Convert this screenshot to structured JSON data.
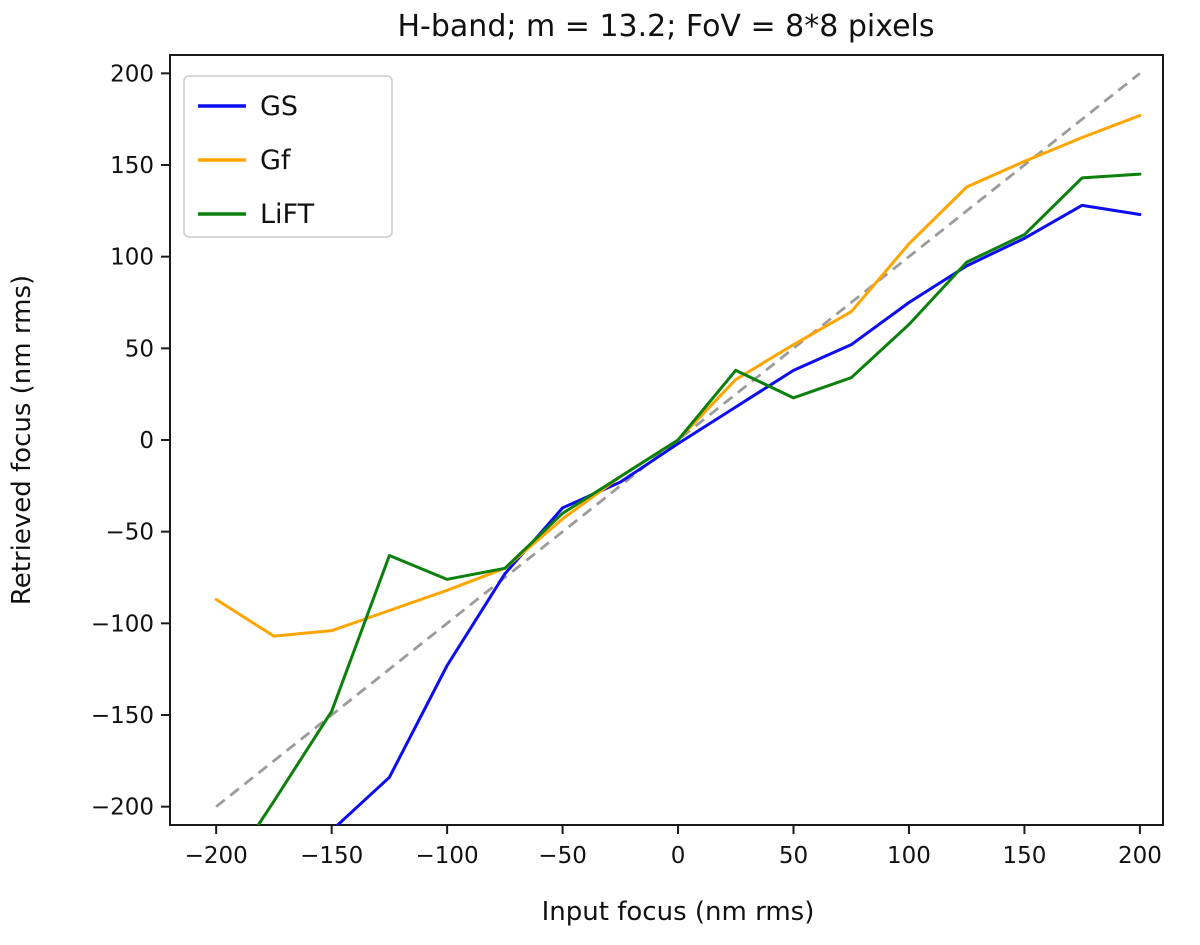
{
  "chart": {
    "title": "H-band; m = 13.2; FoV = 8*8 pixels",
    "xlabel": "Input focus (nm rms)",
    "ylabel": "Retrieved focus (nm rms)"
  },
  "chart_data": {
    "type": "line",
    "title": "H-band; m = 13.2; FoV = 8*8 pixels",
    "xlabel": "Input focus (nm rms)",
    "ylabel": "Retrieved focus (nm rms)",
    "xlim": [
      -220,
      210
    ],
    "ylim": [
      -210,
      210
    ],
    "xticks": [
      -200,
      -150,
      -100,
      -50,
      0,
      50,
      100,
      150,
      200
    ],
    "yticks": [
      -200,
      -150,
      -100,
      -50,
      0,
      50,
      100,
      150,
      200
    ],
    "grid": false,
    "legend_position": "upper left",
    "series": [
      {
        "name": "GS",
        "color": "#0d0df2",
        "x": [
          -150,
          -125,
          -100,
          -75,
          -50,
          -25,
          0,
          25,
          50,
          75,
          100,
          125,
          150,
          175,
          200
        ],
        "y": [
          -213,
          -184,
          -123,
          -73,
          -37,
          -23,
          -2,
          18,
          38,
          52,
          75,
          95,
          110,
          128,
          123
        ]
      },
      {
        "name": "Gf",
        "color": "#ffa500",
        "x": [
          -200,
          -175,
          -150,
          -125,
          -100,
          -75,
          -50,
          -25,
          0,
          25,
          50,
          75,
          100,
          125,
          150,
          175,
          200
        ],
        "y": [
          -87,
          -107,
          -104,
          -93,
          -82,
          -70,
          -43,
          -20,
          0,
          33,
          52,
          70,
          107,
          138,
          152,
          165,
          177
        ]
      },
      {
        "name": "LiFT",
        "color": "#0c800c",
        "x": [
          -200,
          -175,
          -150,
          -125,
          -100,
          -75,
          -50,
          -25,
          0,
          25,
          50,
          75,
          100,
          125,
          150,
          175,
          200
        ],
        "y": [
          -245,
          -197,
          -148,
          -63,
          -76,
          -70,
          -40,
          -20,
          0,
          38,
          23,
          34,
          63,
          97,
          112,
          143,
          145
        ]
      }
    ],
    "reference_line": {
      "name": "identity-dashed",
      "color": "#9b9b9b",
      "style": "dashed",
      "x": [
        -200,
        200
      ],
      "y": [
        -200,
        200
      ]
    }
  }
}
